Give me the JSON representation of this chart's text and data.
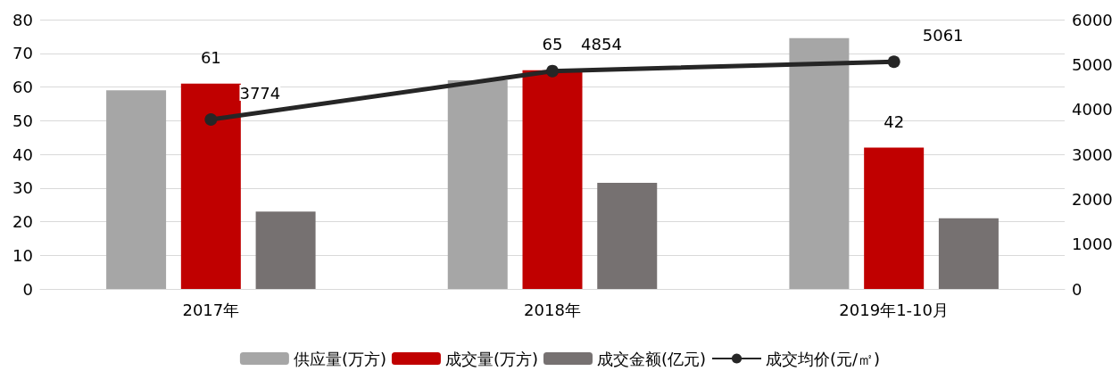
{
  "chart_data": {
    "type": "bar",
    "categories": [
      "2017年",
      "2018年",
      "2019年1-10月"
    ],
    "series": [
      {
        "name": "供应量(万方)",
        "color": "#a6a6a6",
        "values": [
          59,
          62,
          74.5
        ]
      },
      {
        "name": "成交量(万方)",
        "color": "#c00000",
        "values": [
          61,
          65,
          42
        ],
        "value_labels": [
          "61",
          "65",
          "42"
        ]
      },
      {
        "name": "成交金额(亿元)",
        "color": "#767171",
        "values": [
          23,
          31.5,
          21
        ]
      },
      {
        "name": "成交均价(元/㎡)",
        "type": "line",
        "axis": "y2",
        "color": "#262626",
        "values": [
          3774,
          4854,
          5061
        ],
        "value_labels": [
          "3774",
          "4854",
          "5061"
        ]
      }
    ],
    "ylim": [
      0,
      80
    ],
    "yticks": [
      0,
      10,
      20,
      30,
      40,
      50,
      60,
      70,
      80
    ],
    "y2lim": [
      0,
      6000
    ],
    "y2ticks": [
      0,
      1000,
      2000,
      3000,
      4000,
      5000,
      6000
    ],
    "grid": "y",
    "legend": "bottom",
    "marker": "circle",
    "line_style": "solid"
  }
}
